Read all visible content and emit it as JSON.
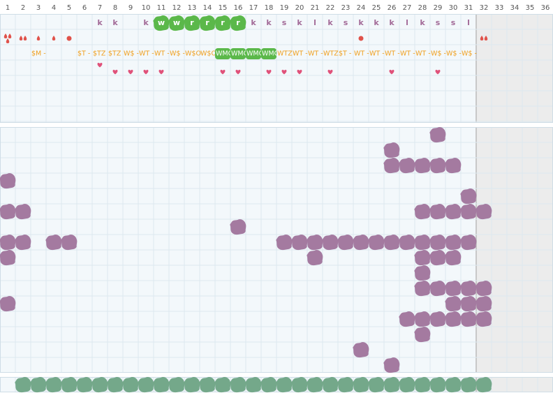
{
  "columns": [
    "1",
    "2",
    "3",
    "4",
    "5",
    "6",
    "7",
    "8",
    "9",
    "10",
    "11",
    "12",
    "13",
    "14",
    "15",
    "16",
    "17",
    "18",
    "19",
    "20",
    "21",
    "22",
    "23",
    "24",
    "25",
    "26",
    "27",
    "28",
    "29",
    "30",
    "31",
    "32",
    "33",
    "34",
    "35",
    "36"
  ],
  "top": {
    "letters": [
      {
        "col": 7,
        "text": "k"
      },
      {
        "col": 8,
        "text": "k"
      },
      {
        "col": 10,
        "text": "k"
      },
      {
        "col": 11,
        "text": "w",
        "highlight": true
      },
      {
        "col": 12,
        "text": "w",
        "highlight": true
      },
      {
        "col": 13,
        "text": "r",
        "highlight": true
      },
      {
        "col": 14,
        "text": "r",
        "highlight": true
      },
      {
        "col": 15,
        "text": "r",
        "highlight": true
      },
      {
        "col": 16,
        "text": "r",
        "highlight": true
      },
      {
        "col": 17,
        "text": "k"
      },
      {
        "col": 18,
        "text": "k"
      },
      {
        "col": 19,
        "text": "s"
      },
      {
        "col": 20,
        "text": "k"
      },
      {
        "col": 21,
        "text": "l"
      },
      {
        "col": 22,
        "text": "k"
      },
      {
        "col": 23,
        "text": "s"
      },
      {
        "col": 24,
        "text": "k"
      },
      {
        "col": 25,
        "text": "k"
      },
      {
        "col": 26,
        "text": "k"
      },
      {
        "col": 27,
        "text": "l"
      },
      {
        "col": 28,
        "text": "k"
      },
      {
        "col": 29,
        "text": "s"
      },
      {
        "col": 30,
        "text": "s"
      },
      {
        "col": 31,
        "text": "l"
      }
    ],
    "drops": [
      {
        "col": 1,
        "count": 3
      },
      {
        "col": 2,
        "count": 2
      },
      {
        "col": 3,
        "count": 1
      },
      {
        "col": 4,
        "count": 1
      },
      {
        "col": 5,
        "count": 0
      },
      {
        "col": 24,
        "count": 0
      },
      {
        "col": 32,
        "count": 2
      }
    ],
    "tags": [
      {
        "col": 3,
        "text": "$M -"
      },
      {
        "col": 6,
        "text": "$T -"
      },
      {
        "col": 7,
        "text": "$TZ"
      },
      {
        "col": 8,
        "text": "$TZ"
      },
      {
        "col": 9,
        "text": "W$ -"
      },
      {
        "col": 10,
        "text": "WT -"
      },
      {
        "col": 11,
        "text": "WT -"
      },
      {
        "col": 12,
        "text": "W$ -"
      },
      {
        "col": 13,
        "text": "W$O"
      },
      {
        "col": 14,
        "text": "W$O"
      },
      {
        "col": 15,
        "text": "WMO",
        "highlight": true
      },
      {
        "col": 16,
        "text": "WMO",
        "highlight": true
      },
      {
        "col": 17,
        "text": "WMO",
        "highlight": true
      },
      {
        "col": 18,
        "text": "WMO",
        "highlight": true
      },
      {
        "col": 19,
        "text": "WTZ"
      },
      {
        "col": 20,
        "text": "WT -"
      },
      {
        "col": 21,
        "text": "WT -"
      },
      {
        "col": 22,
        "text": "WTZ"
      },
      {
        "col": 23,
        "text": "$T -"
      },
      {
        "col": 24,
        "text": "WT -"
      },
      {
        "col": 25,
        "text": "WT -"
      },
      {
        "col": 26,
        "text": "WT -"
      },
      {
        "col": 27,
        "text": "WT -"
      },
      {
        "col": 28,
        "text": "WT -"
      },
      {
        "col": 29,
        "text": "W$ -"
      },
      {
        "col": 30,
        "text": "W$ -"
      },
      {
        "col": 31,
        "text": "W$ -"
      }
    ],
    "hearts_upper": [
      7
    ],
    "hearts_lower": [
      8,
      9,
      10,
      11,
      15,
      16,
      18,
      19,
      20,
      22,
      26,
      29
    ]
  },
  "grid_rows": [
    [
      29
    ],
    [
      26
    ],
    [
      26,
      27,
      28,
      29,
      30
    ],
    [
      1
    ],
    [
      31
    ],
    [
      1,
      2,
      28,
      29,
      30,
      31,
      32
    ],
    [
      16
    ],
    [
      1,
      2,
      4,
      5,
      19,
      20,
      21,
      22,
      23,
      24,
      25,
      26,
      27,
      28,
      29,
      30,
      31
    ],
    [
      1,
      21,
      28,
      29,
      30
    ],
    [
      28
    ],
    [
      28,
      29,
      30,
      31,
      32
    ],
    [
      1,
      30,
      31,
      32
    ],
    [
      27,
      28,
      29,
      30,
      31,
      32
    ],
    [
      28
    ],
    [
      24
    ],
    [
      26
    ]
  ],
  "bottom_row": [
    2,
    3,
    4,
    5,
    6,
    7,
    8,
    9,
    10,
    11,
    12,
    13,
    14,
    15,
    16,
    17,
    18,
    19,
    20,
    21,
    22,
    23,
    24,
    25,
    26,
    27,
    28,
    29,
    30,
    31,
    32
  ]
}
